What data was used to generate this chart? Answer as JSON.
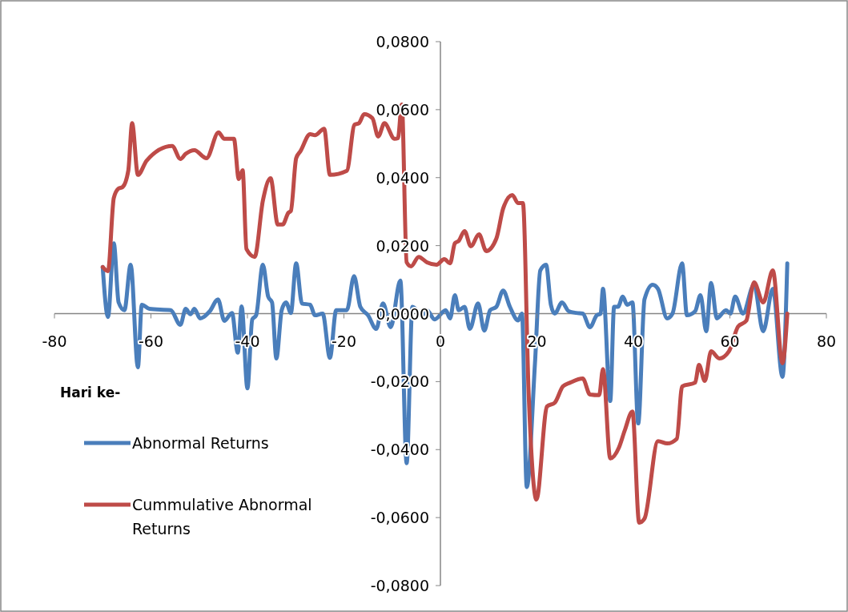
{
  "chart_data": {
    "type": "line",
    "xlabel": "Hari ke-",
    "xlim": [
      -80,
      80
    ],
    "xticks": [
      -80,
      -60,
      -40,
      -20,
      0,
      20,
      40,
      60,
      80
    ],
    "ylim": [
      -0.08,
      0.08
    ],
    "yticks": [
      {
        "value": -0.08,
        "label": "-0,0800"
      },
      {
        "value": -0.06,
        "label": "-0,0600"
      },
      {
        "value": -0.04,
        "label": "-0,0400"
      },
      {
        "value": -0.02,
        "label": "-0,0200"
      },
      {
        "value": 0,
        "label": "0,0000"
      },
      {
        "value": 0.02,
        "label": "0,0200"
      },
      {
        "value": 0.04,
        "label": "0,0400"
      },
      {
        "value": 0.06,
        "label": "0,0600"
      },
      {
        "value": 0.08,
        "label": "0,0800"
      }
    ],
    "grid": false,
    "legend": "left",
    "marker": "none",
    "line_style": "solid",
    "series": [
      {
        "name": "Abnormal Returns",
        "color": "#4a7ebb",
        "x": [
          -70,
          -68.9,
          -67.7,
          -66.7,
          -65.5,
          -64.2,
          -62.7,
          -61.9,
          -60.3,
          -55.9,
          -53.9,
          -52.8,
          -51.8,
          -51,
          -49.8,
          -47.8,
          -46.1,
          -44.8,
          -43.2,
          -42,
          -41.2,
          -40,
          -39,
          -38.2,
          -36.8,
          -35.7,
          -34.9,
          -34,
          -32.9,
          -32,
          -31,
          -29.9,
          -28.7,
          -27,
          -26,
          -24.4,
          -22.9,
          -21.6,
          -19.4,
          -17.9,
          -16.6,
          -15,
          -13.3,
          -11.9,
          -10.3,
          -8.3,
          -7,
          -5.8,
          -3.8,
          -2.8,
          -1.2,
          1.1,
          2,
          3,
          3.8,
          5,
          6.1,
          7.8,
          9.1,
          10.3,
          11.6,
          13,
          14.4,
          16.1,
          16.9,
          17.9,
          19.6,
          20.7,
          21.9,
          22.9,
          23.7,
          25.2,
          26.6,
          28.2,
          29.5,
          31,
          32.4,
          33.2,
          33.7,
          35.2,
          36,
          36.8,
          37.8,
          38.7,
          39.8,
          41,
          42.3,
          44,
          45.1,
          47,
          48.1,
          50.1,
          51.1,
          52.8,
          53.9,
          55.1,
          56.1,
          57.3,
          59.2,
          60.1,
          61.1,
          62.7,
          65,
          66.9,
          68.9,
          70.9,
          71.9
        ],
        "values": [
          0.0137,
          -0.001,
          0.0207,
          0.0033,
          0.001,
          0.0144,
          -0.0158,
          0.0026,
          0.0014,
          0.001,
          -0.0033,
          0.0014,
          -0.0002,
          0.0014,
          -0.0014,
          0.0007,
          0.0042,
          -0.0021,
          0.0002,
          -0.0115,
          0.0021,
          -0.022,
          -0.0017,
          -0.0005,
          0.0144,
          0.005,
          0.0033,
          -0.0132,
          0.001,
          0.0033,
          0.0002,
          0.0148,
          0.003,
          0.0026,
          -0.0005,
          0,
          -0.013,
          0.001,
          0.001,
          0.011,
          0.002,
          -0.0005,
          -0.0045,
          0.003,
          -0.004,
          0.0097,
          -0.044,
          0.002,
          -0.0005,
          0.001,
          -0.0017,
          0.001,
          -0.0014,
          0.0054,
          0.001,
          0.002,
          -0.0045,
          0.003,
          -0.005,
          0.001,
          0.002,
          0.0068,
          0.002,
          -0.002,
          0,
          -0.051,
          -0.0146,
          0.0127,
          0.0144,
          0.0026,
          0,
          0.0033,
          0.0007,
          0.0002,
          0,
          -0.004,
          -0.0005,
          0,
          0.0073,
          -0.0257,
          0.002,
          0.002,
          0.005,
          0.0026,
          0.0033,
          -0.0323,
          0.0042,
          0.0085,
          0.0073,
          -0.0014,
          0,
          0.0148,
          -0.0005,
          0.0007,
          0.0054,
          -0.0052,
          0.009,
          -0.0014,
          0.001,
          0,
          0.005,
          0,
          0.0085,
          -0.0052,
          0.0073,
          -0.0186,
          0.0148
        ]
      },
      {
        "name": "Cummulative Abnormal Returns",
        "color": "#be4b48",
        "x": [
          -70,
          -68.9,
          -67.7,
          -66.7,
          -65.9,
          -64.7,
          -63.9,
          -62.7,
          -60.9,
          -55.6,
          -53.9,
          -52.8,
          -51,
          -48.5,
          -46,
          -44.8,
          -42.8,
          -41.8,
          -41,
          -40.2,
          -38.5,
          -36.8,
          -35.2,
          -33.7,
          -32.7,
          -31.5,
          -31,
          -29.9,
          -29,
          -27,
          -26,
          -24.1,
          -22.9,
          -19.4,
          -17.8,
          -16.9,
          -15.8,
          -14.1,
          -12.9,
          -11.6,
          -9.5,
          -8.8,
          -8,
          -7,
          -6.1,
          -4.5,
          -2.8,
          -0.8,
          0.8,
          2,
          3,
          3.8,
          5,
          6.3,
          8,
          9.5,
          11.6,
          13,
          14.9,
          16.1,
          17.1,
          18.3,
          19.9,
          22.1,
          23.7,
          25.4,
          26.9,
          29.5,
          31,
          32.9,
          33.7,
          35.2,
          37,
          38.2,
          39.8,
          41.2,
          42.3,
          45.1,
          47,
          49,
          50.1,
          52.8,
          53.6,
          54.8,
          56.1,
          57.8,
          59.8,
          61.7,
          63.4,
          65,
          66.9,
          68.9,
          70.9,
          71.9
        ],
        "values": [
          0.0137,
          0.0125,
          0.034,
          0.0368,
          0.0372,
          0.042,
          0.056,
          0.0408,
          0.045,
          0.0493,
          0.0455,
          0.047,
          0.0481,
          0.0457,
          0.0533,
          0.0514,
          0.0514,
          0.0396,
          0.0422,
          0.019,
          0.0167,
          0.0332,
          0.0398,
          0.0262,
          0.0262,
          0.0297,
          0.0302,
          0.0457,
          0.0478,
          0.0528,
          0.0525,
          0.0544,
          0.0408,
          0.042,
          0.0556,
          0.056,
          0.0587,
          0.0575,
          0.0521,
          0.056,
          0.0514,
          0.0516,
          0.0615,
          0.0151,
          0.0139,
          0.0167,
          0.0151,
          0.0144,
          0.016,
          0.0148,
          0.0207,
          0.0214,
          0.0243,
          0.0198,
          0.0233,
          0.0184,
          0.0221,
          0.0309,
          0.0349,
          0.0325,
          0.0325,
          -0.024,
          -0.0547,
          -0.0273,
          -0.0262,
          -0.0214,
          -0.0203,
          -0.0191,
          -0.0238,
          -0.024,
          -0.0163,
          -0.0426,
          -0.0394,
          -0.0344,
          -0.0288,
          -0.0615,
          -0.0603,
          -0.0375,
          -0.0382,
          -0.0368,
          -0.0214,
          -0.0203,
          -0.0151,
          -0.0198,
          -0.0111,
          -0.0132,
          -0.0111,
          -0.0038,
          -0.0021,
          0.0092,
          0.0033,
          0.0127,
          -0.0146,
          0
        ]
      }
    ]
  }
}
